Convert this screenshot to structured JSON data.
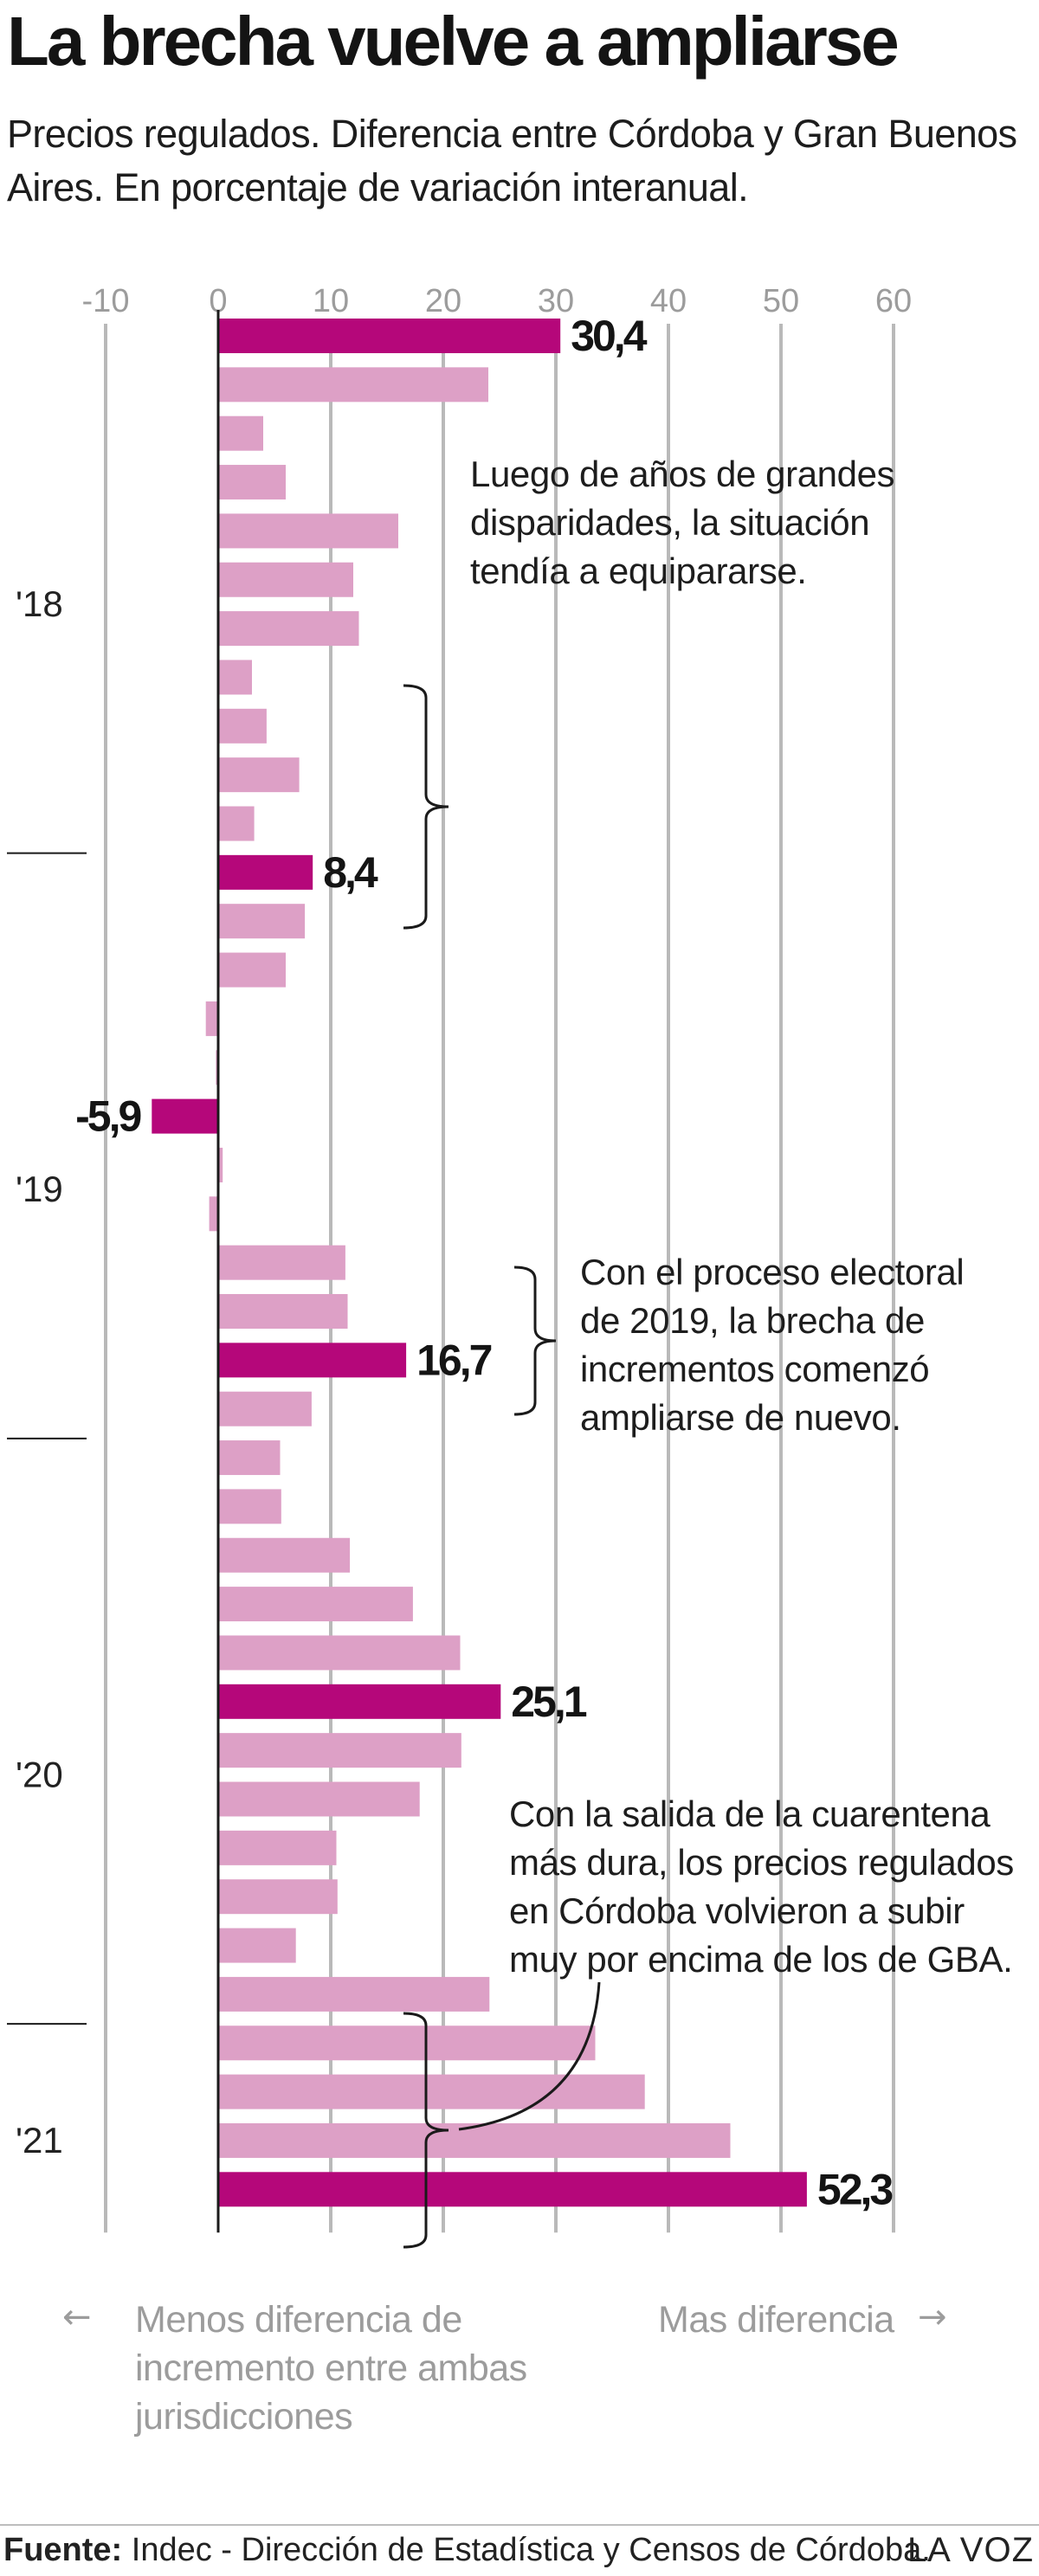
{
  "title": "La brecha vuelve a ampliarse",
  "subtitle": "Precios regulados. Diferencia entre Córdoba y Gran Buenos Aires. En porcentaje de variación interanual.",
  "colors": {
    "highlight": "#b5077a",
    "bar": "#dda0c6",
    "grid": "#b9b9b9",
    "axis": "#1a1a1a",
    "muted": "#9c9c9c"
  },
  "chart_data": {
    "type": "bar",
    "orientation": "horizontal",
    "xlim": [
      -10,
      60
    ],
    "xticks": [
      -10,
      0,
      10,
      20,
      30,
      40,
      50,
      60
    ],
    "grid": true,
    "values": [
      30.4,
      24,
      4,
      6,
      16,
      12,
      12.5,
      3,
      4.3,
      7.2,
      3.2,
      8.4,
      7.7,
      6,
      -1.1,
      -0.2,
      -5.9,
      0.4,
      -0.8,
      11.3,
      11.5,
      16.7,
      8.3,
      5.5,
      5.6,
      11.7,
      17.3,
      21.5,
      25.1,
      21.6,
      17.9,
      10.5,
      10.6,
      6.9,
      24.1,
      33.5,
      37.9,
      45.5,
      52.3
    ],
    "highlight_labels": [
      "30,4",
      "8,4",
      "-5,9",
      "16,7",
      "25,1",
      "52,3"
    ],
    "highlight_indices": [
      0,
      11,
      16,
      21,
      28,
      38
    ],
    "year_labels": [
      "'18",
      "'19",
      "'20",
      "'21"
    ],
    "year_label_rows": [
      5.5,
      17.5,
      29.5,
      37
    ]
  },
  "annotations": [
    "Luego de años de grandes disparidades, la situación tendía a equipararse.",
    "Con el proceso electoral de 2019, la brecha de incrementos comenzó ampliarse de nuevo.",
    "Con la salida de la cuarentena más dura, los precios regulados en Córdoba volvieron a subir muy por encima de los de GBA."
  ],
  "footer": {
    "left": "Menos diferencia de incremento entre ambas jurisdicciones",
    "right": "Mas diferencia",
    "arrow_left": "←",
    "arrow_right": "→"
  },
  "source": {
    "label": "Fuente:",
    "text": "Indec - Dirección de Estadística y Censos de Córdoba."
  },
  "brand": "LA VOZ"
}
